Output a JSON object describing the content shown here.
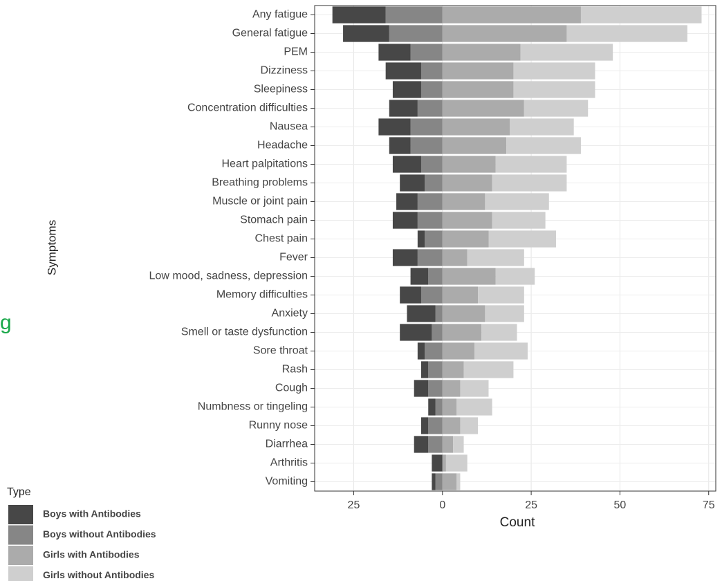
{
  "chart_data": {
    "type": "diverging_stacked_bar",
    "xlabel": "Count",
    "ylabel": "Symptoms",
    "legend_title": "Type",
    "annotation": "g",
    "categories": [
      "Any fatigue",
      "General fatigue",
      "PEM",
      "Dizziness",
      "Sleepiness",
      "Concentration difficulties",
      "Nausea",
      "Headache",
      "Heart palpitations",
      "Breathing problems",
      "Muscle or joint pain",
      "Stomach pain",
      "Chest pain",
      "Fever",
      "Low mood, sadness, depression",
      "Memory difficulties",
      "Anxiety",
      "Smell or taste dysfunction",
      "Sore throat",
      "Rash",
      "Cough",
      "Numbness or tingeling",
      "Runny nose",
      "Diarrhea",
      "Arthritis",
      "Vomiting"
    ],
    "series": [
      {
        "name": "Boys with Antibodies",
        "color": "#474747",
        "values": [
          -15,
          -13,
          -9,
          -10,
          -8,
          -8,
          -9,
          -6,
          -8,
          -7,
          -6,
          -7,
          -2,
          -7,
          -5,
          -6,
          -8,
          -9,
          -2,
          -2,
          -4,
          -2,
          -2,
          -4,
          -3,
          -1
        ]
      },
      {
        "name": "Boys without Antibodies",
        "color": "#868686",
        "values": [
          -16,
          -15,
          -9,
          -6,
          -6,
          -7,
          -9,
          -9,
          -6,
          -5,
          -7,
          -7,
          -5,
          -7,
          -4,
          -6,
          -2,
          -3,
          -5,
          -4,
          -4,
          -2,
          -4,
          -4,
          0,
          -2
        ]
      },
      {
        "name": "Girls with Antibodies",
        "color": "#ababab",
        "values": [
          39,
          35,
          22,
          20,
          20,
          23,
          19,
          18,
          15,
          14,
          12,
          14,
          13,
          7,
          15,
          10,
          12,
          11,
          9,
          6,
          5,
          4,
          5,
          3,
          1,
          4
        ]
      },
      {
        "name": "Girls without Antibodies",
        "color": "#cfcfcf",
        "values": [
          34,
          34,
          26,
          23,
          23,
          18,
          18,
          21,
          20,
          21,
          18,
          15,
          19,
          16,
          11,
          13,
          11,
          10,
          15,
          14,
          8,
          10,
          5,
          3,
          6,
          1
        ]
      }
    ],
    "xlim": [
      -36,
      77
    ],
    "xticks": [
      {
        "value": -25,
        "label": "25"
      },
      0,
      25,
      50,
      75
    ],
    "grid": true,
    "legend_position": "bottom-left"
  }
}
